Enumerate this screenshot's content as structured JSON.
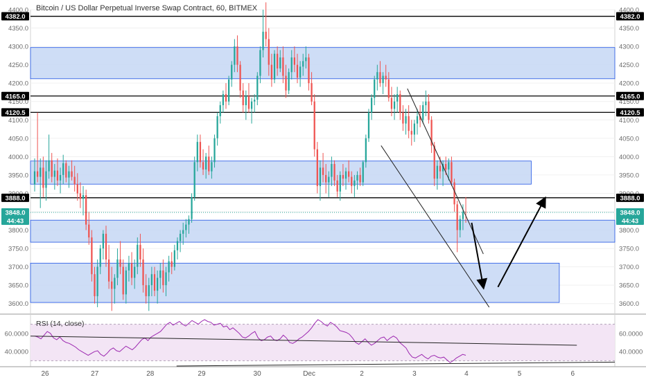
{
  "chart_data": {
    "type": "candlestick",
    "title": "Bitcoin / US Dollar Perpetual Inverse Swap Contract, 60, BITMEX",
    "x_ticks": [
      "26",
      "27",
      "28",
      "29",
      "30",
      "Dec",
      "2",
      "3",
      "4",
      "5",
      "6"
    ],
    "y_ticks": [
      "4400.0",
      "4350.0",
      "4300.0",
      "4250.0",
      "4200.0",
      "4150.0",
      "4100.0",
      "4050.0",
      "4000.0",
      "3950.0",
      "3900.0",
      "3850.0",
      "3800.0",
      "3750.0",
      "3700.0",
      "3650.0",
      "3600.0"
    ],
    "ylim": [
      3575,
      4400
    ],
    "candles": [
      [
        3924,
        3995,
        3905,
        3960
      ],
      [
        3960,
        4120,
        3930,
        3945
      ],
      [
        3945,
        3995,
        3860,
        3970
      ],
      [
        3970,
        4000,
        3890,
        3915
      ],
      [
        3915,
        3990,
        3880,
        3960
      ],
      [
        3960,
        4060,
        3940,
        3990
      ],
      [
        3990,
        4010,
        3930,
        3945
      ],
      [
        3945,
        3980,
        3910,
        3962
      ],
      [
        3962,
        3995,
        3920,
        3935
      ],
      [
        3935,
        3970,
        3900,
        3950
      ],
      [
        3950,
        4005,
        3925,
        3982
      ],
      [
        3982,
        3990,
        3930,
        3943
      ],
      [
        3943,
        3975,
        3915,
        3960
      ],
      [
        3960,
        3990,
        3935,
        3945
      ],
      [
        3945,
        3975,
        3905,
        3925
      ],
      [
        3925,
        3955,
        3880,
        3900
      ],
      [
        3900,
        3930,
        3860,
        3885
      ],
      [
        3885,
        3920,
        3840,
        3895
      ],
      [
        3895,
        3910,
        3800,
        3815
      ],
      [
        3815,
        3850,
        3760,
        3780
      ],
      [
        3780,
        3800,
        3660,
        3680
      ],
      [
        3680,
        3700,
        3600,
        3620
      ],
      [
        3620,
        3720,
        3590,
        3700
      ],
      [
        3700,
        3760,
        3680,
        3750
      ],
      [
        3750,
        3800,
        3720,
        3790
      ],
      [
        3790,
        3812,
        3700,
        3720
      ],
      [
        3720,
        3760,
        3640,
        3660
      ],
      [
        3660,
        3700,
        3580,
        3640
      ],
      [
        3640,
        3680,
        3600,
        3670
      ],
      [
        3670,
        3750,
        3650,
        3720
      ],
      [
        3720,
        3770,
        3680,
        3700
      ],
      [
        3700,
        3720,
        3610,
        3625
      ],
      [
        3625,
        3700,
        3600,
        3690
      ],
      [
        3690,
        3730,
        3660,
        3710
      ],
      [
        3710,
        3740,
        3650,
        3670
      ],
      [
        3670,
        3720,
        3640,
        3700
      ],
      [
        3700,
        3780,
        3680,
        3760
      ],
      [
        3760,
        3790,
        3700,
        3720
      ],
      [
        3720,
        3750,
        3630,
        3650
      ],
      [
        3650,
        3680,
        3600,
        3620
      ],
      [
        3620,
        3670,
        3580,
        3650
      ],
      [
        3650,
        3700,
        3620,
        3680
      ],
      [
        3680,
        3700,
        3620,
        3635
      ],
      [
        3635,
        3690,
        3600,
        3670
      ],
      [
        3670,
        3710,
        3640,
        3690
      ],
      [
        3690,
        3720,
        3630,
        3650
      ],
      [
        3650,
        3700,
        3620,
        3685
      ],
      [
        3685,
        3730,
        3660,
        3715
      ],
      [
        3715,
        3740,
        3680,
        3700
      ],
      [
        3700,
        3760,
        3690,
        3745
      ],
      [
        3745,
        3780,
        3720,
        3770
      ],
      [
        3770,
        3800,
        3740,
        3790
      ],
      [
        3790,
        3820,
        3760,
        3800
      ],
      [
        3800,
        3830,
        3780,
        3815
      ],
      [
        3815,
        3840,
        3790,
        3830
      ],
      [
        3830,
        3900,
        3820,
        3890
      ],
      [
        3890,
        4000,
        3880,
        3985
      ],
      [
        3985,
        4060,
        3960,
        4040
      ],
      [
        4040,
        4060,
        3970,
        3985
      ],
      [
        3985,
        4020,
        3950,
        3965
      ],
      [
        3965,
        4010,
        3940,
        4000
      ],
      [
        4000,
        4030,
        3950,
        3960
      ],
      [
        3960,
        4000,
        3940,
        3985
      ],
      [
        3985,
        4060,
        3970,
        4050
      ],
      [
        4050,
        4120,
        4030,
        4110
      ],
      [
        4110,
        4150,
        4090,
        4140
      ],
      [
        4140,
        4180,
        4120,
        4170
      ],
      [
        4170,
        4200,
        4130,
        4150
      ],
      [
        4150,
        4220,
        4140,
        4210
      ],
      [
        4210,
        4260,
        4190,
        4250
      ],
      [
        4250,
        4320,
        4230,
        4300
      ],
      [
        4300,
        4330,
        4230,
        4250
      ],
      [
        4250,
        4260,
        4160,
        4180
      ],
      [
        4180,
        4200,
        4120,
        4140
      ],
      [
        4140,
        4180,
        4100,
        4165
      ],
      [
        4165,
        4200,
        4120,
        4130
      ],
      [
        4130,
        4160,
        4090,
        4150
      ],
      [
        4150,
        4170,
        4120,
        4155
      ],
      [
        4155,
        4230,
        4140,
        4220
      ],
      [
        4220,
        4300,
        4200,
        4290
      ],
      [
        4290,
        4400,
        4270,
        4340
      ],
      [
        4340,
        4420,
        4300,
        4320
      ],
      [
        4320,
        4350,
        4220,
        4250
      ],
      [
        4250,
        4280,
        4190,
        4210
      ],
      [
        4210,
        4290,
        4200,
        4280
      ],
      [
        4280,
        4300,
        4220,
        4240
      ],
      [
        4240,
        4290,
        4230,
        4270
      ],
      [
        4270,
        4300,
        4200,
        4220
      ],
      [
        4220,
        4250,
        4160,
        4180
      ],
      [
        4180,
        4240,
        4170,
        4230
      ],
      [
        4230,
        4290,
        4210,
        4270
      ],
      [
        4270,
        4300,
        4230,
        4250
      ],
      [
        4250,
        4280,
        4200,
        4215
      ],
      [
        4215,
        4260,
        4190,
        4245
      ],
      [
        4245,
        4280,
        4220,
        4260
      ],
      [
        4260,
        4300,
        4240,
        4270
      ],
      [
        4270,
        4280,
        4180,
        4200
      ],
      [
        4200,
        4230,
        4140,
        4150
      ],
      [
        4150,
        4170,
        4000,
        4020
      ],
      [
        4020,
        4040,
        3900,
        3920
      ],
      [
        3920,
        3990,
        3880,
        3970
      ],
      [
        3970,
        4010,
        3930,
        3950
      ],
      [
        3950,
        3980,
        3900,
        3930
      ],
      [
        3930,
        3960,
        3890,
        3945
      ],
      [
        3945,
        4000,
        3920,
        3980
      ],
      [
        3980,
        3990,
        3920,
        3935
      ],
      [
        3935,
        3950,
        3890,
        3905
      ],
      [
        3905,
        3960,
        3880,
        3950
      ],
      [
        3950,
        3980,
        3920,
        3940
      ],
      [
        3940,
        3970,
        3910,
        3960
      ],
      [
        3960,
        3990,
        3930,
        3945
      ],
      [
        3945,
        3960,
        3900,
        3920
      ],
      [
        3920,
        3950,
        3890,
        3935
      ],
      [
        3935,
        3960,
        3910,
        3950
      ],
      [
        3950,
        3970,
        3920,
        3930
      ],
      [
        3930,
        3990,
        3920,
        3985
      ],
      [
        3985,
        4060,
        3970,
        4050
      ],
      [
        4050,
        4130,
        4040,
        4120
      ],
      [
        4120,
        4170,
        4100,
        4160
      ],
      [
        4160,
        4220,
        4140,
        4210
      ],
      [
        4210,
        4250,
        4180,
        4230
      ],
      [
        4230,
        4260,
        4190,
        4200
      ],
      [
        4200,
        4230,
        4170,
        4220
      ],
      [
        4220,
        4250,
        4190,
        4210
      ],
      [
        4210,
        4230,
        4150,
        4160
      ],
      [
        4160,
        4190,
        4110,
        4130
      ],
      [
        4130,
        4170,
        4100,
        4150
      ],
      [
        4150,
        4190,
        4120,
        4170
      ],
      [
        4170,
        4180,
        4100,
        4120
      ],
      [
        4120,
        4140,
        4070,
        4090
      ],
      [
        4090,
        4130,
        4060,
        4110
      ],
      [
        4110,
        4140,
        4050,
        4070
      ],
      [
        4070,
        4100,
        4030,
        4060
      ],
      [
        4060,
        4100,
        4040,
        4090
      ],
      [
        4090,
        4130,
        4060,
        4110
      ],
      [
        4110,
        4140,
        4080,
        4100
      ],
      [
        4100,
        4150,
        4090,
        4140
      ],
      [
        4140,
        4180,
        4110,
        4150
      ],
      [
        4150,
        4170,
        4090,
        4100
      ],
      [
        4100,
        4110,
        4010,
        4030
      ],
      [
        4030,
        4040,
        3920,
        3940
      ],
      [
        3940,
        3990,
        3910,
        3975
      ],
      [
        3975,
        4000,
        3940,
        3960
      ],
      [
        3960,
        3990,
        3920,
        3980
      ],
      [
        3980,
        4000,
        3950,
        3965
      ],
      [
        3965,
        3995,
        3935,
        3985
      ],
      [
        3985,
        4000,
        3920,
        3930
      ],
      [
        3930,
        3940,
        3850,
        3870
      ],
      [
        3870,
        3880,
        3740,
        3800
      ],
      [
        3800,
        3840,
        3780,
        3830
      ],
      [
        3830,
        3870,
        3800,
        3850
      ],
      [
        3850,
        3890,
        3820,
        3848
      ]
    ],
    "horizontal_levels": [
      {
        "value": 4382.0,
        "label": "4382.0"
      },
      {
        "value": 4165.0,
        "label": "4165.0"
      },
      {
        "value": 4120.5,
        "label": "4120.5"
      },
      {
        "value": 3888.0,
        "label": "3888.0"
      }
    ],
    "current_price": {
      "value": 3848.0,
      "label": "3848.0",
      "countdown": "44:43"
    },
    "zones": [
      {
        "y1": 4212,
        "y2": 4297,
        "start": 0,
        "end": 1
      },
      {
        "y1": 3925,
        "y2": 3988,
        "start": 0,
        "end": 0.857
      },
      {
        "y1": 3767,
        "y2": 3827,
        "start": 0,
        "end": 1
      },
      {
        "y1": 3603,
        "y2": 3710,
        "start": 0,
        "end": 0.905
      }
    ],
    "rsi": {
      "title": "RSI (14, close)",
      "y_ticks": [
        "60.0000",
        "40.0000"
      ],
      "ylim": [
        25,
        78
      ],
      "upper_band": 70,
      "lower_band": 30,
      "values": [
        57,
        56,
        54,
        58,
        62,
        60,
        55,
        53,
        56,
        52,
        50,
        49,
        47,
        45,
        42,
        40,
        38,
        36,
        38,
        40,
        41,
        37,
        35,
        38,
        42,
        44,
        41,
        40,
        43,
        46,
        44,
        42,
        45,
        49,
        53,
        55,
        52,
        56,
        58,
        60,
        62,
        66,
        70,
        72,
        69,
        71,
        73,
        70,
        68,
        71,
        74,
        72,
        70,
        73,
        75,
        73,
        72,
        69,
        70,
        71,
        67,
        68,
        64,
        66,
        63,
        60,
        56,
        55,
        57,
        60,
        62,
        55,
        52,
        53,
        56,
        57,
        53,
        52,
        54,
        58,
        55,
        50,
        49,
        51,
        54,
        56,
        59,
        62,
        66,
        71,
        75,
        73,
        70,
        68,
        72,
        70,
        67,
        63,
        62,
        61,
        59,
        55,
        50,
        48,
        51,
        54,
        50,
        47,
        49,
        52,
        55,
        56,
        52,
        55,
        57,
        55,
        50,
        47,
        44,
        38,
        34,
        33,
        35,
        37,
        34,
        32,
        35,
        36,
        34,
        33,
        34,
        31,
        28,
        30,
        33,
        35,
        37,
        36
      ]
    },
    "annotation_lines": [
      {
        "from": [
          0.0,
          3980
        ],
        "to": [
          0.5,
          3870
        ]
      },
      {
        "from": [
          0.667,
          4175
        ],
        "to": [
          0.733,
          3780
        ]
      }
    ],
    "arrows": [
      {
        "from": [
          0.7,
          3825
        ],
        "to": [
          0.735,
          3650
        ]
      },
      {
        "from": [
          0.755,
          3650
        ],
        "to": [
          0.82,
          3890
        ]
      }
    ]
  },
  "colors": {
    "up": "#26a69a",
    "down": "#ef5350",
    "zone_fill": "#c5d7f4",
    "zone_stroke": "#1e53e5",
    "rsi_line": "#9c27b0",
    "rsi_band": "#f3e5f5",
    "level_line": "#000000",
    "price_badge": "#26a69a"
  }
}
